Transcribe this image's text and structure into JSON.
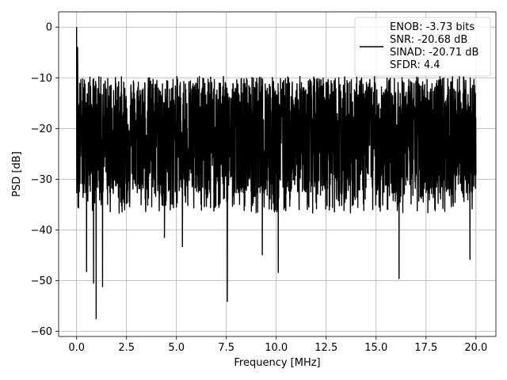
{
  "chart_data": {
    "type": "line",
    "title": "",
    "xlabel": "Frequency [MHz]",
    "ylabel": "PSD [dB]",
    "xlim": [
      -0.9,
      21.0
    ],
    "ylim": [
      -61,
      3
    ],
    "x_ticks": [
      0.0,
      2.5,
      5.0,
      7.5,
      10.0,
      12.5,
      15.0,
      17.5,
      20.0
    ],
    "x_tick_labels": [
      "0.0",
      "2.5",
      "5.0",
      "7.5",
      "10.0",
      "12.5",
      "15.0",
      "17.5",
      "20.0"
    ],
    "y_ticks": [
      0,
      -10,
      -20,
      -30,
      -40,
      -50,
      -60
    ],
    "y_tick_labels": [
      "0",
      "−10",
      "−20",
      "−30",
      "−40",
      "−50",
      "−60"
    ],
    "grid": true,
    "legend_position": "top-right",
    "series": [
      {
        "name": "ENOB: -3.73 bits\nSNR: -20.68 dB\nSINAD: -20.71 dB\nSFDR: 4.4",
        "color": "#000000",
        "x_range": [
          0.0,
          20.0
        ],
        "noise_mean": -20.7,
        "noise_top": -10,
        "notable_points": [
          {
            "x": 0.0,
            "y": 0
          },
          {
            "x": 0.05,
            "y": -4
          },
          {
            "x": 0.5,
            "y": -48.2
          },
          {
            "x": 0.85,
            "y": -50.5
          },
          {
            "x": 0.98,
            "y": -57.5
          },
          {
            "x": 1.3,
            "y": -51.2
          },
          {
            "x": 4.4,
            "y": -41.5
          },
          {
            "x": 5.3,
            "y": -43.3
          },
          {
            "x": 7.55,
            "y": -54.1
          },
          {
            "x": 9.3,
            "y": -44.9
          },
          {
            "x": 10.1,
            "y": -48.4
          },
          {
            "x": 16.15,
            "y": -49.6
          },
          {
            "x": 19.7,
            "y": -45.8
          }
        ]
      }
    ]
  },
  "legend": {
    "lines": [
      "ENOB: -3.73 bits",
      "SNR: -20.68 dB",
      "SINAD: -20.71 dB",
      "SFDR: 4.4"
    ]
  }
}
